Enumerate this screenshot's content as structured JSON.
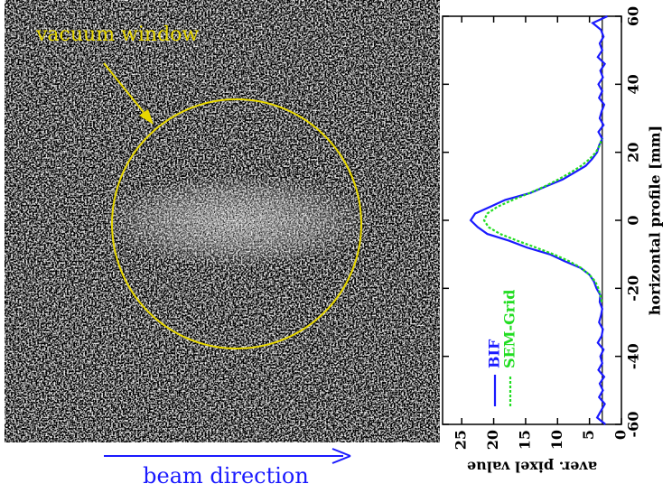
{
  "image": {
    "window_label": "vacuum window",
    "beam_label": "beam direction"
  },
  "chart_data": {
    "type": "line",
    "xlabel": "horizontal profile [mm]",
    "ylabel": "aver. pixel value",
    "xlim": [
      -60,
      60
    ],
    "xticks": [
      -60,
      -40,
      -20,
      0,
      20,
      40,
      60
    ],
    "ylim": [
      0,
      28
    ],
    "yticks": [
      0,
      5,
      10,
      15,
      20,
      25
    ],
    "baseline": 3,
    "x": [
      -60,
      -58,
      -56,
      -54,
      -52,
      -50,
      -48,
      -46,
      -44,
      -42,
      -40,
      -38,
      -36,
      -34,
      -32,
      -30,
      -28,
      -26,
      -24,
      -22,
      -20,
      -18,
      -16,
      -14,
      -12,
      -10,
      -8,
      -6,
      -4,
      -2,
      0,
      2,
      4,
      6,
      8,
      10,
      12,
      14,
      16,
      18,
      20,
      22,
      24,
      26,
      28,
      30,
      32,
      34,
      36,
      38,
      40,
      42,
      44,
      46,
      48,
      50,
      52,
      54,
      56,
      58,
      60
    ],
    "series": [
      {
        "name": "BIF",
        "color": "#1a1aff",
        "dash": false,
        "values": [
          2.5,
          3.8,
          3.2,
          2.6,
          3.5,
          2.9,
          3.4,
          2.7,
          3.6,
          3.0,
          3.3,
          2.8,
          3.7,
          3.1,
          2.9,
          3.5,
          3.2,
          3.0,
          3.4,
          3.3,
          3.9,
          4.3,
          5.0,
          6.4,
          8.9,
          11.2,
          14.8,
          17.6,
          21.0,
          22.5,
          23.6,
          22.9,
          20.5,
          18.2,
          14.3,
          11.8,
          9.2,
          7.4,
          5.6,
          4.6,
          3.8,
          3.5,
          3.0,
          3.6,
          2.8,
          3.4,
          3.1,
          2.7,
          3.5,
          3.0,
          3.6,
          2.9,
          3.3,
          2.6,
          3.7,
          3.0,
          3.4,
          2.8,
          3.2,
          4.5,
          2.2
        ]
      },
      {
        "name": "SEM-Grid",
        "color": "#22dd22",
        "dash": true,
        "values": [
          null,
          null,
          null,
          null,
          null,
          null,
          null,
          null,
          null,
          null,
          null,
          null,
          null,
          null,
          null,
          null,
          null,
          null,
          3.1,
          3.3,
          3.6,
          4.1,
          5.0,
          6.3,
          8.2,
          10.6,
          13.4,
          16.3,
          19.0,
          20.8,
          21.5,
          21.0,
          19.4,
          17.0,
          14.4,
          12.0,
          9.9,
          8.0,
          6.3,
          5.0,
          4.0,
          3.4,
          3.1,
          null,
          null,
          null,
          null,
          null,
          null,
          null,
          null,
          null,
          null,
          null,
          null,
          null,
          null,
          null,
          null,
          null,
          null
        ]
      }
    ]
  }
}
